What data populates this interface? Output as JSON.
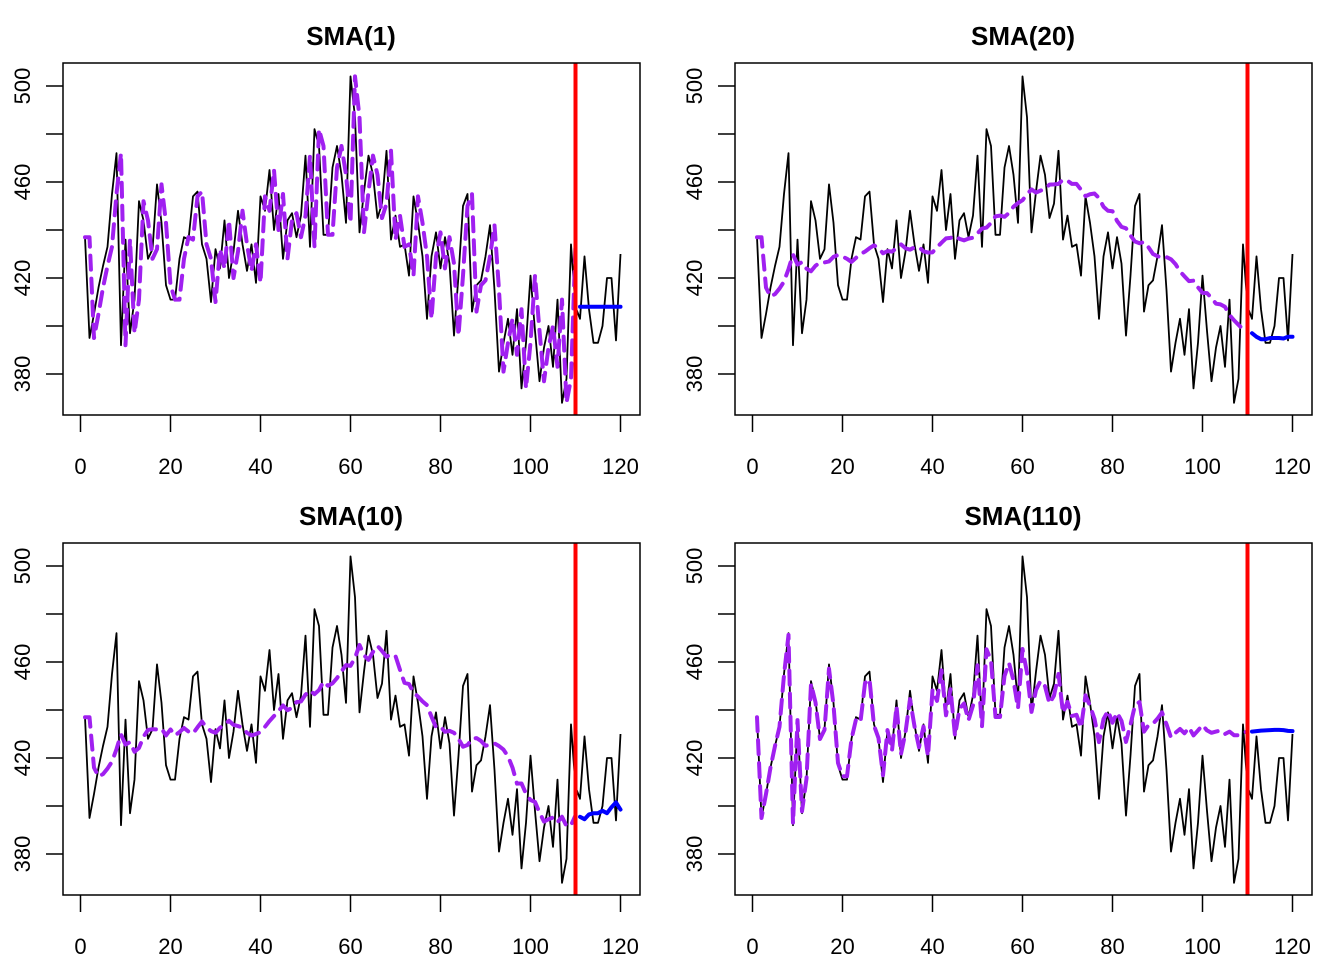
{
  "chart_data": {
    "type": "line",
    "layout": "2x2 grid",
    "xlim": [
      1,
      120
    ],
    "ylim": [
      366,
      510
    ],
    "x_ticks": [
      0,
      20,
      40,
      60,
      80,
      100,
      120
    ],
    "y_ticks": [
      380,
      420,
      460,
      500
    ],
    "y_minor_ticks": [
      400,
      440,
      480
    ],
    "holdout_start": 110,
    "colors": {
      "actual": "#000000",
      "fitted": "#a020f0",
      "forecast": "#0000ff",
      "holdout_line": "#ff0000",
      "axes": "#000000"
    },
    "actual": [
      437,
      395,
      405,
      416,
      425,
      433,
      455,
      472,
      392,
      436,
      397,
      411,
      452,
      444,
      428,
      432,
      459,
      443,
      417,
      411,
      411,
      428,
      437,
      436,
      454,
      456,
      434,
      428,
      410,
      432,
      424,
      444,
      420,
      431,
      448,
      434,
      423,
      434,
      418,
      454,
      448,
      465,
      440,
      455,
      428,
      444,
      447,
      437,
      446,
      471,
      433,
      482,
      475,
      438,
      438,
      466,
      475,
      463,
      443,
      504,
      487,
      439,
      456,
      471,
      463,
      445,
      451,
      473,
      436,
      446,
      433,
      434,
      421,
      454,
      443,
      429,
      403,
      429,
      439,
      424,
      437,
      426,
      396,
      421,
      450,
      455,
      406,
      417,
      419,
      429,
      442,
      415,
      381,
      393,
      403,
      388,
      407,
      374,
      393,
      421,
      398,
      377,
      391,
      400,
      383,
      411,
      368,
      378,
      434,
      408,
      403,
      429,
      407,
      393,
      393,
      400,
      420,
      420,
      394,
      430
    ],
    "panels": [
      {
        "title": "SMA(1)",
        "fitted": [
          437,
          437,
          395,
          405,
          416,
          425,
          433,
          455,
          472,
          392,
          436,
          397,
          411,
          452,
          444,
          428,
          432,
          459,
          443,
          417,
          411,
          411,
          428,
          437,
          436,
          454,
          456,
          434,
          428,
          410,
          432,
          424,
          444,
          420,
          431,
          448,
          434,
          423,
          434,
          418,
          454,
          448,
          465,
          440,
          455,
          428,
          444,
          447,
          437,
          446,
          471,
          433,
          482,
          475,
          438,
          438,
          466,
          475,
          463,
          443,
          504,
          487,
          439,
          456,
          471,
          463,
          445,
          451,
          473,
          436,
          446,
          433,
          434,
          421,
          454,
          443,
          429,
          403,
          429,
          439,
          424,
          437,
          426,
          396,
          421,
          450,
          455,
          406,
          417,
          419,
          429,
          442,
          415,
          381,
          393,
          403,
          388,
          407,
          374,
          393,
          421,
          398,
          377,
          391,
          400,
          383,
          411,
          368,
          378,
          434
        ],
        "forecast": [
          408,
          408,
          408,
          408,
          408,
          408,
          408,
          408,
          408,
          408
        ]
      },
      {
        "title": "SMA(20)",
        "fitted": [
          437,
          437,
          416,
          412.3,
          413.3,
          415.6,
          418.5,
          423.7,
          429.8,
          425.6,
          426.6,
          423.9,
          422.8,
          425.1,
          426.4,
          426.5,
          426.9,
          428.8,
          429.6,
          428.9,
          428,
          426.7,
          428.4,
          430,
          431,
          432.4,
          433.6,
          432.5,
          430.3,
          431.2,
          431,
          432.4,
          434,
          432.4,
          431.8,
          432.8,
          432.9,
          431.1,
          430.6,
          430.7,
          432.8,
          434.7,
          436.5,
          436.7,
          437.6,
          436.3,
          435.7,
          436.4,
          436.8,
          438.6,
          440.6,
          441,
          442.9,
          445.7,
          446,
          445.5,
          447.1,
          449.7,
          451.2,
          452.4,
          454.9,
          456.9,
          455.6,
          456.4,
          457.2,
          458.9,
          459,
          459.2,
          461,
          460.5,
          459.2,
          459.2,
          456.8,
          454.1,
          454.9,
          455.2,
          453.3,
          449.7,
          448,
          447.8,
          443.8,
          441.3,
          440.7,
          437.7,
          435.2,
          434.5,
          435,
          432.8,
          430,
          429.1,
          428.3,
          428.7,
          427.8,
          425.8,
          422.7,
          420.7,
          418.7,
          418.9,
          416.1,
          413.8,
          413.7,
          411.7,
          409.3,
          409,
          408,
          404.6,
          402.4,
          400.5,
          398.6,
          399.3
        ],
        "forecast": [
          397,
          395.5,
          394.5,
          394.5,
          395,
          395,
          395,
          394.8,
          395.5,
          395.5
        ]
      },
      {
        "title": "SMA(10)",
        "fitted": [
          437,
          437,
          416,
          412.3,
          413.3,
          415.6,
          418.5,
          423.7,
          429.8,
          425.6,
          426.6,
          422.6,
          424.2,
          428.9,
          431.7,
          432,
          431.9,
          432.3,
          429.4,
          431.9,
          429.4,
          430.8,
          432.5,
          431,
          430.2,
          432.8,
          435.2,
          432.7,
          431.2,
          430.5,
          432.6,
          433.9,
          435.5,
          433.8,
          433.3,
          432.7,
          430.5,
          429.4,
          430,
          430.8,
          433,
          435.4,
          437.5,
          439.5,
          441.9,
          439.9,
          440.9,
          443.3,
          443.6,
          446.4,
          448.1,
          446.6,
          448.3,
          451.8,
          450.1,
          451.1,
          453.3,
          456.1,
          458.7,
          458.4,
          461.7,
          467.1,
          462.8,
          460.9,
          464.2,
          466.7,
          464.6,
          462.2,
          463.2,
          462.5,
          456.7,
          451.3,
          450.8,
          447.3,
          445.6,
          443.6,
          442,
          437.2,
          432.8,
          433.1,
          430.9,
          431.3,
          430.5,
          428,
          424.7,
          425.4,
          428,
          428.3,
          427.1,
          425.1,
          425.6,
          426.1,
          425,
          423.5,
          420.7,
          416,
          409.3,
          409.4,
          405.1,
          402.5,
          401.7,
          397.3,
          393.5,
          394.5,
          395.2,
          393.2,
          395.5,
          391.6,
          392,
          396.1
        ],
        "forecast": [
          395.5,
          394.5,
          396.5,
          397,
          397,
          398,
          397,
          399.5,
          401.5,
          398.5
        ]
      },
      {
        "title": "SMA(110)",
        "fitted": [
          437,
          395,
          405,
          416,
          425,
          433,
          454.6,
          471.3,
          392.7,
          435.8,
          397.8,
          411.4,
          450.9,
          443.2,
          427.9,
          431.7,
          457.2,
          442.1,
          417.9,
          412.4,
          412.4,
          427.9,
          436.1,
          435.1,
          451.2,
          452.9,
          433.5,
          428.3,
          412.8,
          431.6,
          423.1,
          441.6,
          421.7,
          430.7,
          444.5,
          433.2,
          424.5,
          433.1,
          420.7,
          448.4,
          443.8,
          456.5,
          437.8,
          448.8,
          429.2,
          440.6,
          442.7,
          435.7,
          441.9,
          458.6,
          433.3,
          465.3,
          460.7,
          437.1,
          437.1,
          454.2,
          459.6,
          452.3,
          440.7,
          465.4,
          455.6,
          439.2,
          448.3,
          452.1,
          449.9,
          442.7,
          446,
          455,
          438.8,
          443.4,
          437.5,
          438,
          432.6,
          446.1,
          441.7,
          436.3,
          426.6,
          436.2,
          439.7,
          434.7,
          438.9,
          435.5,
          426.7,
          433.9,
          442,
          443.3,
          431,
          433.7,
          434.3,
          436.4,
          439,
          434.1,
          428.5,
          430.5,
          432.1,
          430.3,
          432.7,
          429.4,
          431.5,
          433.7,
          431.5,
          430.5,
          431,
          431.5,
          430,
          431,
          429.5,
          429.5,
          430.5,
          431
        ],
        "forecast": [
          431,
          431.2,
          431.4,
          431.5,
          431.6,
          431.7,
          431.7,
          431.6,
          431.3,
          431.2
        ]
      }
    ]
  }
}
